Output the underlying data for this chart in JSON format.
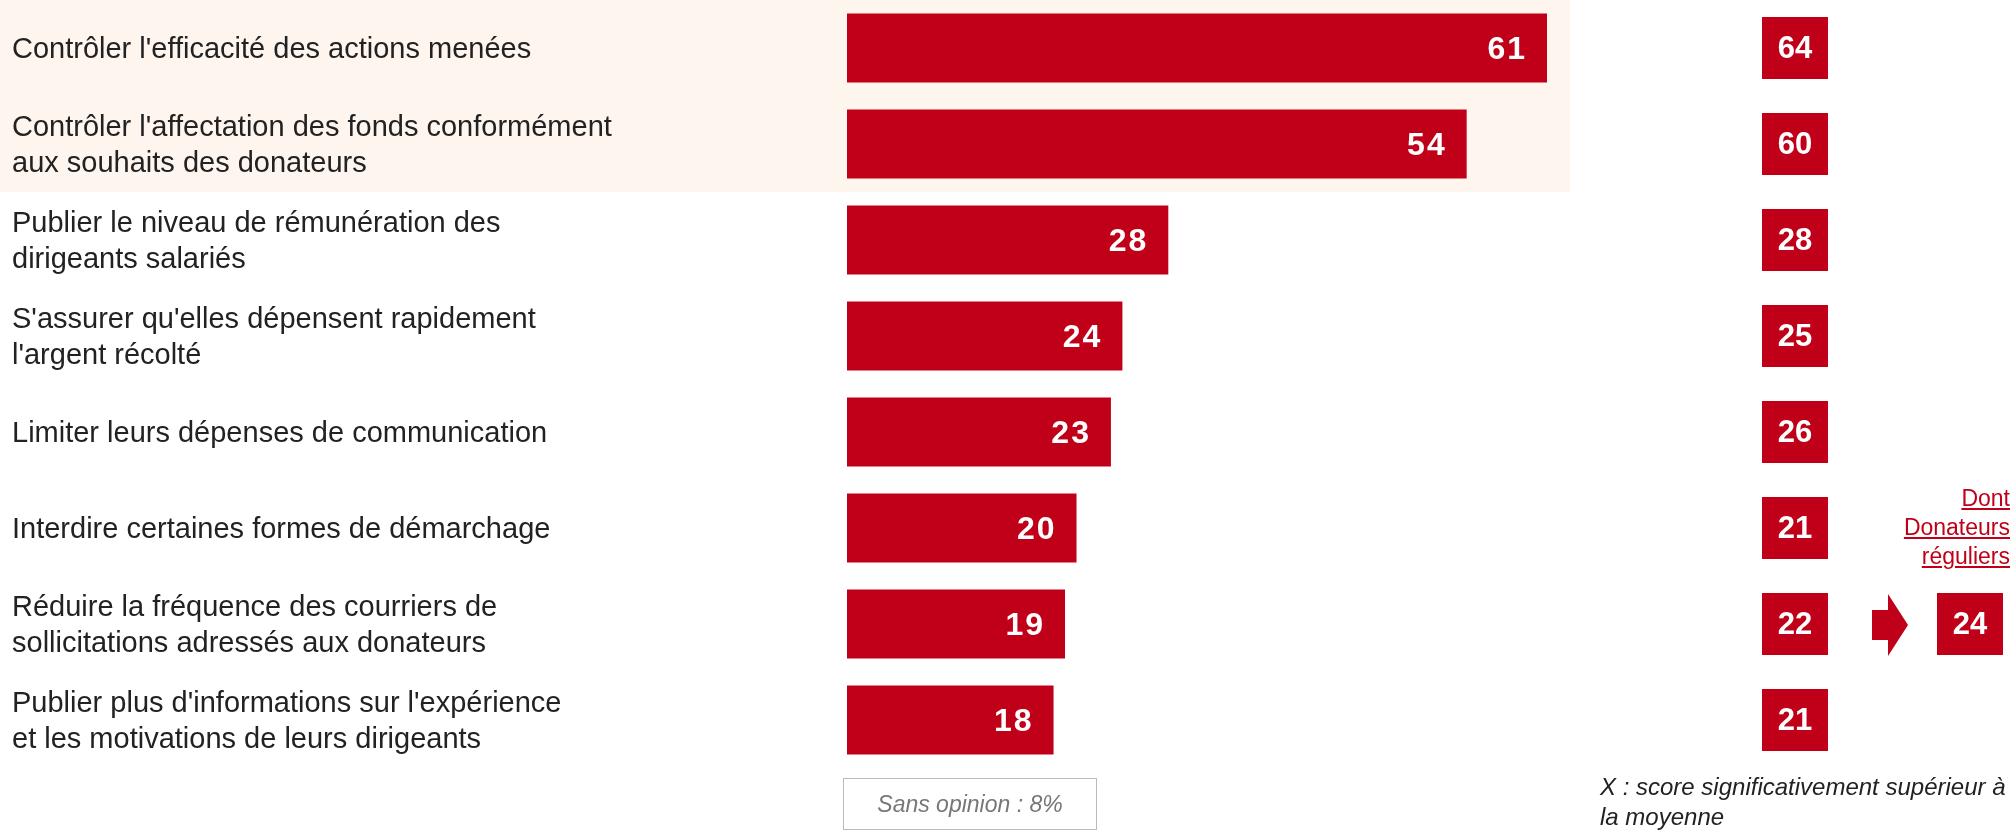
{
  "chart_data": [
    {
      "type": "bar",
      "orientation": "horizontal",
      "categories": [
        "Contrôler l'efficacité des actions menées",
        "Contrôler l'affectation des fonds conformément aux souhaits des donateurs",
        "Publier le niveau de rémunération des dirigeants salariés",
        "S'assurer qu'elles dépensent rapidement l'argent récolté",
        "Limiter leurs dépenses de communication",
        "Interdire certaines formes de démarchage",
        "Réduire la fréquence des courriers de sollicitations adressés aux donateurs",
        "Publier plus d'informations sur l'expérience et les motivations de leurs dirigeants"
      ],
      "values": [
        61,
        54,
        28,
        24,
        23,
        20,
        19,
        18
      ],
      "color": "#c00018",
      "data_labels": true,
      "bands": [
        {
          "axis": "y",
          "from": "Contrôler l'efficacité des actions menées",
          "to": "Contrôler l'affectation des fonds conformément aux souhaits des donateurs",
          "color": "#fdf5ee"
        }
      ],
      "annotations": [
        "Sans opinion : 8%"
      ]
    },
    {
      "type": "other",
      "values": [
        64,
        60,
        28,
        25,
        26,
        21,
        22,
        21
      ],
      "color": "#c00018",
      "data_labels": true,
      "annotations": [
        {
          "text": "Dont Donateurs réguliers",
          "x": "Réduire la fréquence des courriers de sollicitations adressés aux donateurs"
        },
        {
          "text": "24",
          "x": "Réduire la fréquence des courriers de sollicitations adressés aux donateurs"
        },
        "X : score significativement supérieur à la moyenne"
      ]
    }
  ]
}
